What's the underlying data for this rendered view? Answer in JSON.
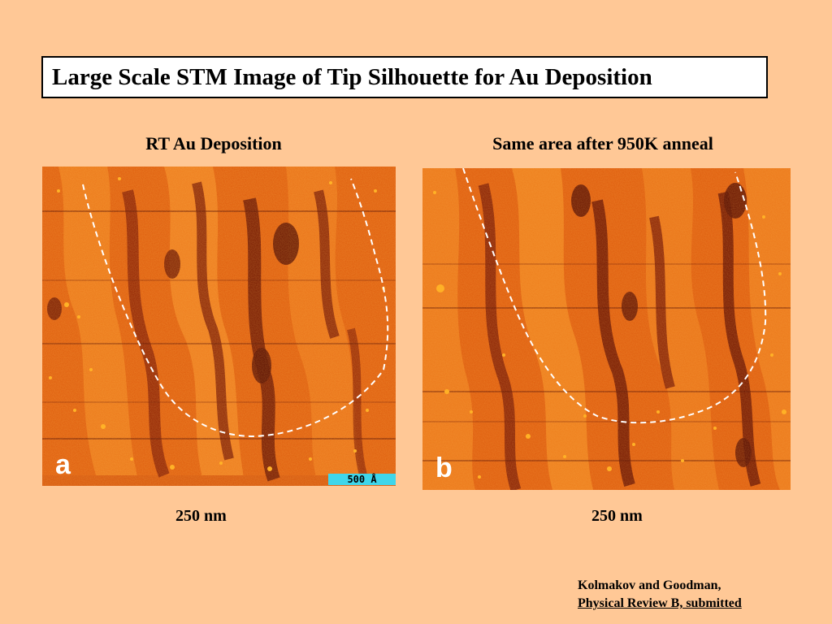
{
  "title": "Large Scale STM Image of Tip Silhouette for Au Deposition",
  "panels": {
    "a": {
      "heading": "RT Au Deposition",
      "letter": "a",
      "scale_bar": "500 Å",
      "caption": "250 nm"
    },
    "b": {
      "heading": "Same area after 950K anneal",
      "letter": "b",
      "caption": "250 nm"
    }
  },
  "citation": {
    "authors": "Kolmakov and Goodman,",
    "journal": "Physical Review B, submitted"
  },
  "colors": {
    "background": "#FFC896",
    "stm_base": "#E06010",
    "stm_dark": "#6A1404",
    "stm_bright": "#FFB020",
    "scale_bar": "#3FD6EA",
    "outline": "#FFFFFF"
  }
}
